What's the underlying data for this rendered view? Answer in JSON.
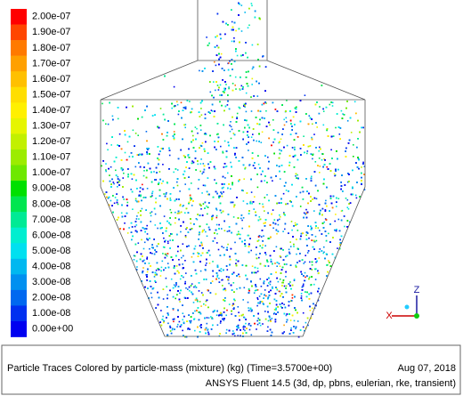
{
  "legend": {
    "levels": [
      {
        "label": "2.00e-07",
        "color": "#ff0000"
      },
      {
        "label": "1.90e-07",
        "color": "#ff4600"
      },
      {
        "label": "1.80e-07",
        "color": "#ff7a00"
      },
      {
        "label": "1.70e-07",
        "color": "#ffa000"
      },
      {
        "label": "1.60e-07",
        "color": "#ffc000"
      },
      {
        "label": "1.50e-07",
        "color": "#ffde00"
      },
      {
        "label": "1.40e-07",
        "color": "#fff000"
      },
      {
        "label": "1.30e-07",
        "color": "#e6f500"
      },
      {
        "label": "1.20e-07",
        "color": "#c2f000"
      },
      {
        "label": "1.10e-07",
        "color": "#9cec00"
      },
      {
        "label": "1.00e-07",
        "color": "#6ee800"
      },
      {
        "label": "9.00e-08",
        "color": "#00e000"
      },
      {
        "label": "8.00e-08",
        "color": "#00e650"
      },
      {
        "label": "7.00e-08",
        "color": "#00ea95"
      },
      {
        "label": "6.00e-08",
        "color": "#00eed0"
      },
      {
        "label": "5.00e-08",
        "color": "#00e0f0"
      },
      {
        "label": "4.00e-08",
        "color": "#00b8f0"
      },
      {
        "label": "3.00e-08",
        "color": "#0090f0"
      },
      {
        "label": "2.00e-08",
        "color": "#0068f0"
      },
      {
        "label": "1.00e-08",
        "color": "#0030f0"
      },
      {
        "label": "0.00e+00",
        "color": "#0000f0"
      }
    ]
  },
  "axes": {
    "z": "Z",
    "x": "X"
  },
  "footer": {
    "description": "Particle Traces Colored by particle-mass (mixture)  (kg)  (Time=3.5700e+00)",
    "date": "Aug 07, 2018",
    "software": "ANSYS Fluent 14.5 (3d, dp, pbns, eulerian, rke, transient)"
  }
}
